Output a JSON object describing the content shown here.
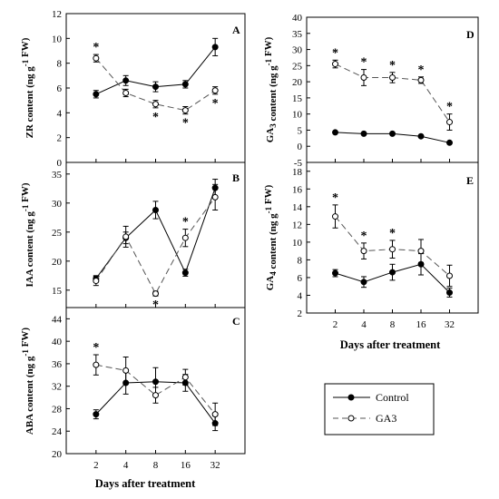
{
  "xlabel": "Days after treatment",
  "x_ticks": [
    "2",
    "4",
    "8",
    "16",
    "32"
  ],
  "legend": [
    {
      "label": "Control",
      "color": "#000000",
      "marker": "filled-circle",
      "line": "solid"
    },
    {
      "label": "GA3",
      "color": "#555555",
      "marker": "open-circle",
      "line": "dashed"
    }
  ],
  "chart_data": [
    {
      "panel": "A",
      "type": "line",
      "ylabel": "ZR content (ng g⁻¹ FW)",
      "x": [
        2,
        4,
        8,
        16,
        32
      ],
      "ylim": [
        0,
        12
      ],
      "yticks": [
        0,
        2,
        4,
        6,
        8,
        10,
        12
      ],
      "series": [
        {
          "name": "Control",
          "values": [
            5.5,
            6.6,
            6.1,
            6.3,
            9.3
          ],
          "errors": [
            0.3,
            0.4,
            0.4,
            0.3,
            0.7
          ]
        },
        {
          "name": "GA3",
          "values": [
            8.4,
            5.6,
            4.7,
            4.2,
            5.8
          ],
          "errors": [
            0.3,
            0.3,
            0.3,
            0.3,
            0.3
          ]
        }
      ],
      "significance": [
        2,
        8,
        16,
        32
      ]
    },
    {
      "panel": "B",
      "type": "line",
      "ylabel": "IAA content (ng g⁻¹ FW)",
      "x": [
        2,
        4,
        8,
        16,
        32
      ],
      "ylim": [
        12,
        37
      ],
      "yticks": [
        15,
        20,
        25,
        30,
        35
      ],
      "series": [
        {
          "name": "Control",
          "values": [
            17.0,
            24.0,
            28.8,
            18.0,
            32.6
          ],
          "errors": [
            0.5,
            1.0,
            1.5,
            0.6,
            1.5
          ]
        },
        {
          "name": "GA3",
          "values": [
            16.6,
            24.2,
            14.4,
            24.0,
            31.0
          ],
          "errors": [
            0.8,
            1.8,
            0.4,
            1.5,
            2.2
          ]
        }
      ],
      "significance": [
        8,
        16
      ]
    },
    {
      "panel": "C",
      "type": "line",
      "ylabel": "ABA content (ng g⁻¹ FW)",
      "x": [
        2,
        4,
        8,
        16,
        32
      ],
      "ylim": [
        20,
        46
      ],
      "yticks": [
        20,
        24,
        28,
        32,
        36,
        40,
        44
      ],
      "series": [
        {
          "name": "Control",
          "values": [
            27.0,
            32.6,
            32.8,
            32.6,
            25.4
          ],
          "errors": [
            0.8,
            2.0,
            2.5,
            1.5,
            1.3
          ]
        },
        {
          "name": "GA3",
          "values": [
            35.8,
            34.8,
            30.4,
            33.6,
            27.0
          ],
          "errors": [
            1.8,
            2.4,
            1.4,
            1.4,
            2.0
          ]
        }
      ],
      "significance": [
        2
      ]
    },
    {
      "panel": "D",
      "type": "line",
      "ylabel": "GA₃ content (ng g⁻¹ FW)",
      "x": [
        2,
        4,
        8,
        16,
        32
      ],
      "ylim": [
        -5,
        40
      ],
      "yticks": [
        -5,
        0,
        5,
        10,
        15,
        20,
        25,
        30,
        35,
        40
      ],
      "series": [
        {
          "name": "Control",
          "values": [
            4.3,
            3.9,
            3.9,
            3.1,
            1.1
          ],
          "errors": [
            0.2,
            0.2,
            0.2,
            0.2,
            0.2
          ]
        },
        {
          "name": "GA3",
          "values": [
            25.5,
            21.3,
            21.3,
            20.5,
            7.5
          ],
          "errors": [
            1.2,
            2.5,
            1.6,
            1.0,
            2.5
          ]
        }
      ],
      "significance": [
        2,
        4,
        8,
        16,
        32
      ]
    },
    {
      "panel": "E",
      "type": "line",
      "ylabel": "GA₄ content (ng g⁻¹ FW)",
      "x": [
        2,
        4,
        8,
        16,
        32
      ],
      "ylim": [
        2,
        19
      ],
      "yticks": [
        2,
        4,
        6,
        8,
        10,
        12,
        14,
        16,
        18
      ],
      "series": [
        {
          "name": "Control",
          "values": [
            6.5,
            5.5,
            6.6,
            7.5,
            4.3
          ],
          "errors": [
            0.4,
            0.6,
            0.9,
            1.2,
            0.5
          ]
        },
        {
          "name": "GA3",
          "values": [
            12.9,
            9.0,
            9.2,
            9.0,
            6.2
          ],
          "errors": [
            1.3,
            0.9,
            1.0,
            1.3,
            1.2
          ]
        }
      ],
      "significance": [
        2,
        4,
        8
      ]
    }
  ]
}
